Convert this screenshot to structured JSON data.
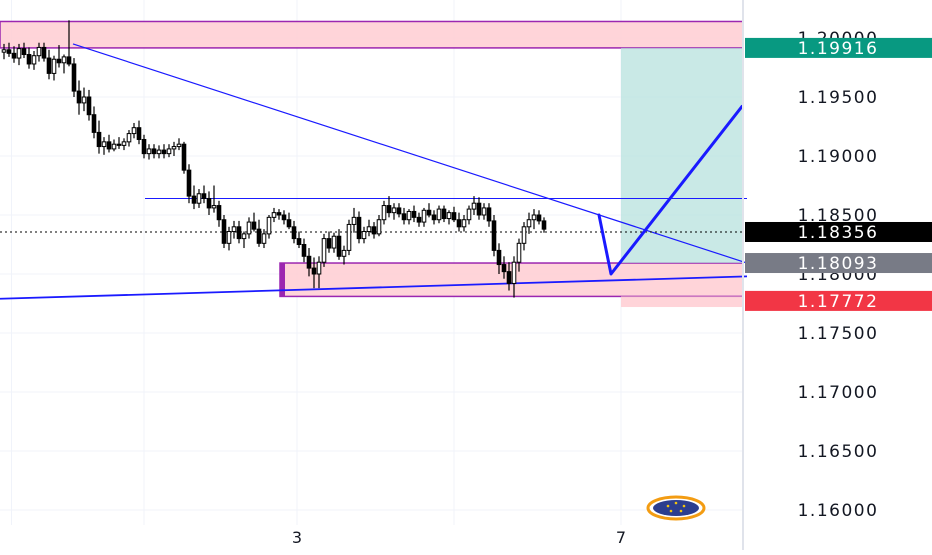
{
  "chart_data": {
    "type": "candlestick",
    "title": "",
    "xlabel": "",
    "ylabel": "",
    "ylim": [
      1.1578,
      1.201
    ],
    "grid": true,
    "y_ticks": [
      "1.20000",
      "1.19500",
      "1.19000",
      "1.18500",
      "1.18000",
      "1.17500",
      "1.17000",
      "1.16500",
      "1.16000"
    ],
    "y_tick_values": [
      1.2,
      1.195,
      1.19,
      1.185,
      1.18,
      1.175,
      1.17,
      1.165,
      1.16
    ],
    "x_ticks": [
      "3",
      "7"
    ],
    "x_tick_index": [
      58.6,
      123.4
    ],
    "price_tags": [
      {
        "label": "1.19916",
        "value": 1.19916,
        "color": "#089981"
      },
      {
        "label": "1.18356",
        "value": 1.18356,
        "color": "#000000"
      },
      {
        "label": "1.18093",
        "value": 1.18093,
        "color": "#787b86"
      },
      {
        "label": "1.17772",
        "value": 1.17772,
        "color": "#f23645"
      }
    ],
    "current_price": 1.18356,
    "zones": [
      {
        "name": "resistance-zone",
        "x_start": -0.8,
        "x_end": 148.6,
        "top": 1.2014,
        "bottom": 1.19916,
        "fill": "#ffcdd2",
        "border": "#9c27b0"
      },
      {
        "name": "support-zone",
        "x_start": 55.2,
        "x_end": 148.6,
        "top": 1.18093,
        "bottom": 1.1781,
        "fill": "#ffcdd2",
        "border": "#9c27b0"
      },
      {
        "name": "stop-zone",
        "x_start": 123.4,
        "x_end": 148.6,
        "top": 1.1781,
        "bottom": 1.1772,
        "fill": "#ffcdd2",
        "border": "#ffcdd2"
      },
      {
        "name": "target-zone",
        "x_start": 123.4,
        "x_end": 148.6,
        "top": 1.19916,
        "bottom": 1.18093,
        "fill": "#b2dfdb",
        "border": "#b2dfdb"
      }
    ],
    "lines": [
      {
        "name": "descending-trendline",
        "points": [
          [
            13.8,
            1.1995
          ],
          [
            148.6,
            1.18093
          ]
        ],
        "color": "#1a1aff",
        "width": 1.2
      },
      {
        "name": "ascending-trendline",
        "points": [
          [
            -0.8,
            1.1779
          ],
          [
            148.6,
            1.1798
          ]
        ],
        "color": "#1a1aff",
        "width": 1.8
      },
      {
        "name": "resistance-level",
        "points": [
          [
            28.2,
            1.1864
          ],
          [
            148.6,
            1.1864
          ]
        ],
        "color": "#1a1aff",
        "width": 1
      }
    ],
    "projection": {
      "points": [
        [
          119.0,
          1.185
        ],
        [
          121.4,
          1.18
        ],
        [
          147.6,
          1.1942
        ]
      ],
      "color": "#1a1aff",
      "width": 3
    },
    "candles": [
      [
        1.1988,
        1.1995,
        1.1982,
        1.199
      ],
      [
        1.199,
        1.1996,
        1.1984,
        1.1987
      ],
      [
        1.1987,
        1.1993,
        1.1979,
        1.1983
      ],
      [
        1.1983,
        1.1995,
        1.1977,
        1.1991
      ],
      [
        1.1991,
        1.1996,
        1.1983,
        1.1986
      ],
      [
        1.1986,
        1.1992,
        1.1974,
        1.1978
      ],
      [
        1.1978,
        1.1989,
        1.1973,
        1.1985
      ],
      [
        1.1985,
        1.1996,
        1.198,
        1.1992
      ],
      [
        1.1992,
        1.1996,
        1.198,
        1.1983
      ],
      [
        1.1983,
        1.199,
        1.1965,
        1.197
      ],
      [
        1.197,
        1.1985,
        1.1964,
        1.1982
      ],
      [
        1.1982,
        1.1994,
        1.1975,
        1.1979
      ],
      [
        1.1979,
        1.1986,
        1.197,
        1.1984
      ],
      [
        1.1984,
        1.2015,
        1.1976,
        1.1978
      ],
      [
        1.1978,
        1.1983,
        1.195,
        1.1955
      ],
      [
        1.1955,
        1.1964,
        1.1935,
        1.1945
      ],
      [
        1.1945,
        1.1958,
        1.1938,
        1.195
      ],
      [
        1.195,
        1.1956,
        1.193,
        1.1935
      ],
      [
        1.1935,
        1.1942,
        1.1915,
        1.192
      ],
      [
        1.192,
        1.193,
        1.1902,
        1.1908
      ],
      [
        1.1908,
        1.1916,
        1.1901,
        1.1912
      ],
      [
        1.1912,
        1.1918,
        1.1903,
        1.1906
      ],
      [
        1.1906,
        1.1914,
        1.1904,
        1.191
      ],
      [
        1.191,
        1.1916,
        1.1906,
        1.1909
      ],
      [
        1.1909,
        1.1915,
        1.1905,
        1.1912
      ],
      [
        1.1912,
        1.1922,
        1.1908,
        1.1919
      ],
      [
        1.1919,
        1.1928,
        1.1915,
        1.1924
      ],
      [
        1.1924,
        1.193,
        1.191,
        1.1914
      ],
      [
        1.1914,
        1.1918,
        1.1898,
        1.1902
      ],
      [
        1.1902,
        1.191,
        1.1897,
        1.1906
      ],
      [
        1.1906,
        1.191,
        1.1898,
        1.1902
      ],
      [
        1.1902,
        1.1909,
        1.1898,
        1.1905
      ],
      [
        1.1905,
        1.191,
        1.1898,
        1.1902
      ],
      [
        1.1902,
        1.191,
        1.1899,
        1.1906
      ],
      [
        1.1906,
        1.1912,
        1.19,
        1.1908
      ],
      [
        1.1908,
        1.1915,
        1.1905,
        1.191
      ],
      [
        1.191,
        1.1912,
        1.1885,
        1.1888
      ],
      [
        1.1888,
        1.1893,
        1.186,
        1.1866
      ],
      [
        1.1866,
        1.1875,
        1.1855,
        1.186
      ],
      [
        1.186,
        1.1872,
        1.1856,
        1.1868
      ],
      [
        1.1868,
        1.1875,
        1.186,
        1.1864
      ],
      [
        1.1864,
        1.187,
        1.185,
        1.1856
      ],
      [
        1.1856,
        1.1875,
        1.1852,
        1.1858
      ],
      [
        1.1858,
        1.1862,
        1.184,
        1.1846
      ],
      [
        1.1846,
        1.185,
        1.1822,
        1.1826
      ],
      [
        1.1826,
        1.184,
        1.182,
        1.1836
      ],
      [
        1.1836,
        1.1845,
        1.183,
        1.184
      ],
      [
        1.184,
        1.1845,
        1.1826,
        1.183
      ],
      [
        1.183,
        1.1836,
        1.1822,
        1.1834
      ],
      [
        1.1834,
        1.1848,
        1.183,
        1.1844
      ],
      [
        1.1844,
        1.1852,
        1.1836,
        1.1838
      ],
      [
        1.1838,
        1.1846,
        1.1823,
        1.1826
      ],
      [
        1.1826,
        1.1838,
        1.1822,
        1.1834
      ],
      [
        1.1834,
        1.185,
        1.183,
        1.1848
      ],
      [
        1.1848,
        1.1856,
        1.1844,
        1.1852
      ],
      [
        1.1852,
        1.1855,
        1.1846,
        1.185
      ],
      [
        1.185,
        1.1854,
        1.1842,
        1.1846
      ],
      [
        1.1846,
        1.1852,
        1.1838,
        1.184
      ],
      [
        1.184,
        1.1845,
        1.1826,
        1.183
      ],
      [
        1.183,
        1.1836,
        1.1822,
        1.1825
      ],
      [
        1.1825,
        1.183,
        1.181,
        1.1815
      ],
      [
        1.1815,
        1.1822,
        1.1798,
        1.1805
      ],
      [
        1.1805,
        1.1814,
        1.1788,
        1.18
      ],
      [
        1.18,
        1.1815,
        1.1788,
        1.181
      ],
      [
        1.181,
        1.1834,
        1.1806,
        1.183
      ],
      [
        1.183,
        1.1836,
        1.1818,
        1.1822
      ],
      [
        1.1822,
        1.1835,
        1.1818,
        1.1832
      ],
      [
        1.1832,
        1.1838,
        1.1812,
        1.1815
      ],
      [
        1.1815,
        1.1824,
        1.1808,
        1.182
      ],
      [
        1.182,
        1.1846,
        1.1816,
        1.1842
      ],
      [
        1.1842,
        1.1856,
        1.1835,
        1.1848
      ],
      [
        1.1848,
        1.1853,
        1.1826,
        1.183
      ],
      [
        1.183,
        1.184,
        1.1826,
        1.1836
      ],
      [
        1.1836,
        1.1846,
        1.1832,
        1.184
      ],
      [
        1.184,
        1.1844,
        1.183,
        1.1834
      ],
      [
        1.1834,
        1.185,
        1.1832,
        1.1846
      ],
      [
        1.1846,
        1.1862,
        1.1842,
        1.1858
      ],
      [
        1.1858,
        1.1866,
        1.1848,
        1.1852
      ],
      [
        1.1852,
        1.186,
        1.1846,
        1.1856
      ],
      [
        1.1856,
        1.186,
        1.1848,
        1.1851
      ],
      [
        1.1851,
        1.1856,
        1.1842,
        1.1846
      ],
      [
        1.1846,
        1.1855,
        1.1842,
        1.1853
      ],
      [
        1.1853,
        1.1858,
        1.1844,
        1.1848
      ],
      [
        1.1848,
        1.1852,
        1.184,
        1.1844
      ],
      [
        1.1844,
        1.1856,
        1.184,
        1.1854
      ],
      [
        1.1854,
        1.186,
        1.1848,
        1.185
      ],
      [
        1.185,
        1.1854,
        1.1842,
        1.1846
      ],
      [
        1.1846,
        1.1858,
        1.1843,
        1.1855
      ],
      [
        1.1855,
        1.1858,
        1.1844,
        1.1847
      ],
      [
        1.1847,
        1.1854,
        1.1842,
        1.1852
      ],
      [
        1.1852,
        1.1857,
        1.1844,
        1.1846
      ],
      [
        1.1846,
        1.1852,
        1.1836,
        1.184
      ],
      [
        1.184,
        1.185,
        1.1836,
        1.1846
      ],
      [
        1.1846,
        1.1858,
        1.1842,
        1.1855
      ],
      [
        1.1855,
        1.1866,
        1.185,
        1.186
      ],
      [
        1.186,
        1.1865,
        1.1846,
        1.185
      ],
      [
        1.185,
        1.186,
        1.1846,
        1.1856
      ],
      [
        1.1856,
        1.186,
        1.184,
        1.1845
      ],
      [
        1.1845,
        1.185,
        1.1815,
        1.182
      ],
      [
        1.182,
        1.1826,
        1.18,
        1.1808
      ],
      [
        1.1808,
        1.1815,
        1.1796,
        1.1802
      ],
      [
        1.1802,
        1.181,
        1.1786,
        1.1792
      ],
      [
        1.1792,
        1.1815,
        1.178,
        1.181
      ],
      [
        1.181,
        1.183,
        1.1802,
        1.1826
      ],
      [
        1.1826,
        1.1844,
        1.182,
        1.184
      ],
      [
        1.184,
        1.1852,
        1.1834,
        1.1846
      ],
      [
        1.1846,
        1.1855,
        1.1838,
        1.185
      ],
      [
        1.185,
        1.1854,
        1.1842,
        1.1845
      ],
      [
        1.1845,
        1.1848,
        1.1835,
        1.1838
      ]
    ]
  }
}
